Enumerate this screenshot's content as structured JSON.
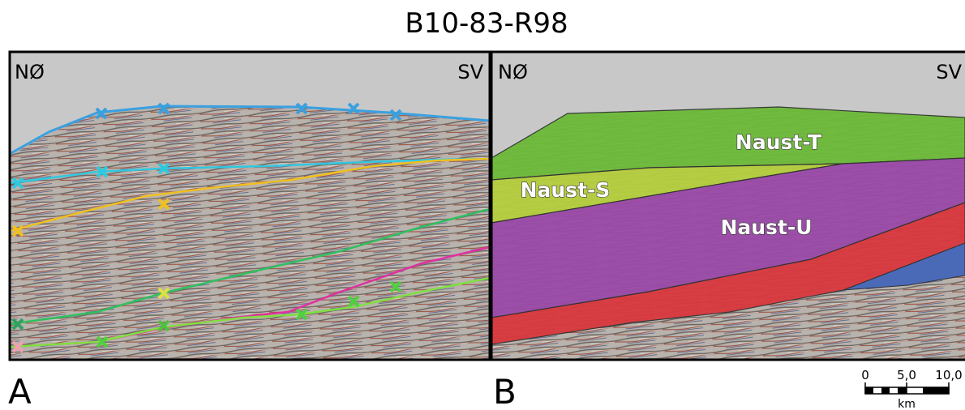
{
  "title": "B10-83-R98",
  "panels": [
    {
      "label": "A",
      "left_direction": "NØ",
      "right_direction": "SV"
    },
    {
      "label": "B",
      "left_direction": "NØ",
      "right_direction": "SV",
      "units": [
        {
          "label": "Naust-T"
        },
        {
          "label": "Naust-S"
        },
        {
          "label": "Naust-U"
        }
      ]
    }
  ],
  "scale_bar": {
    "ticks": [
      "0",
      "5,0",
      "10,0"
    ],
    "unit": "km"
  }
}
